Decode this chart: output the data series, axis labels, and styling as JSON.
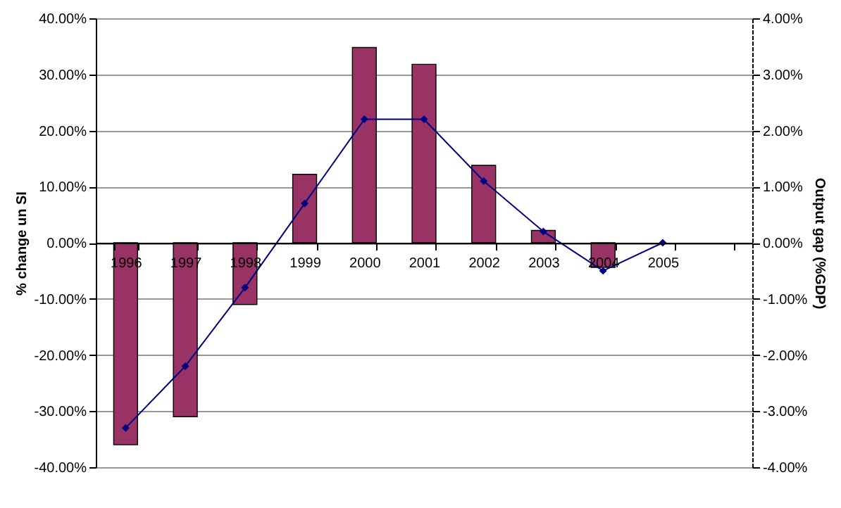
{
  "chart_data": {
    "type": "bar",
    "ylabel": "% change un SI",
    "y2label": "Output gap (%GDP)",
    "categories": [
      "1996",
      "1997",
      "1998",
      "1999",
      "2000",
      "2001",
      "2002",
      "2003",
      "2004",
      "2005",
      null
    ],
    "series": [
      {
        "color": "#993366",
        "values": [
          -36,
          -31,
          -11,
          12.2,
          34.8,
          31.8,
          13.8,
          2.2,
          -4.4,
          null,
          null
        ]
      },
      {
        "type": "line",
        "axis": "y2",
        "color": "#000080",
        "marker": "diamond",
        "values": [
          -3.3,
          -2.2,
          -0.8,
          0.7,
          2.2,
          2.2,
          1.1,
          0.2,
          -0.5,
          0.0,
          null
        ]
      }
    ],
    "ylim": [
      -40,
      40
    ],
    "yticks": [
      {
        "value": -40,
        "label": "-40.00%"
      },
      {
        "value": -30,
        "label": "-30.00%"
      },
      {
        "value": -20,
        "label": "-20.00%"
      },
      {
        "value": -10,
        "label": "-10.00%"
      },
      {
        "value": 0,
        "label": "0.00%"
      },
      {
        "value": 10,
        "label": "10.00%"
      },
      {
        "value": 20,
        "label": "20.00%"
      },
      {
        "value": 30,
        "label": "30.00%"
      },
      {
        "value": 40,
        "label": "40.00%"
      }
    ],
    "y2lim": [
      -4,
      4
    ],
    "y2ticks": [
      {
        "value": -4,
        "label": "-4.00%"
      },
      {
        "value": -3,
        "label": "-3.00%"
      },
      {
        "value": -2,
        "label": "-2.00%"
      },
      {
        "value": -1,
        "label": "-1.00%"
      },
      {
        "value": 0,
        "label": "0.00%"
      },
      {
        "value": 1,
        "label": "1.00%"
      },
      {
        "value": 2,
        "label": "2.00%"
      },
      {
        "value": 3,
        "label": "3.00%"
      },
      {
        "value": 4,
        "label": "4.00%"
      }
    ],
    "grid": "y"
  }
}
